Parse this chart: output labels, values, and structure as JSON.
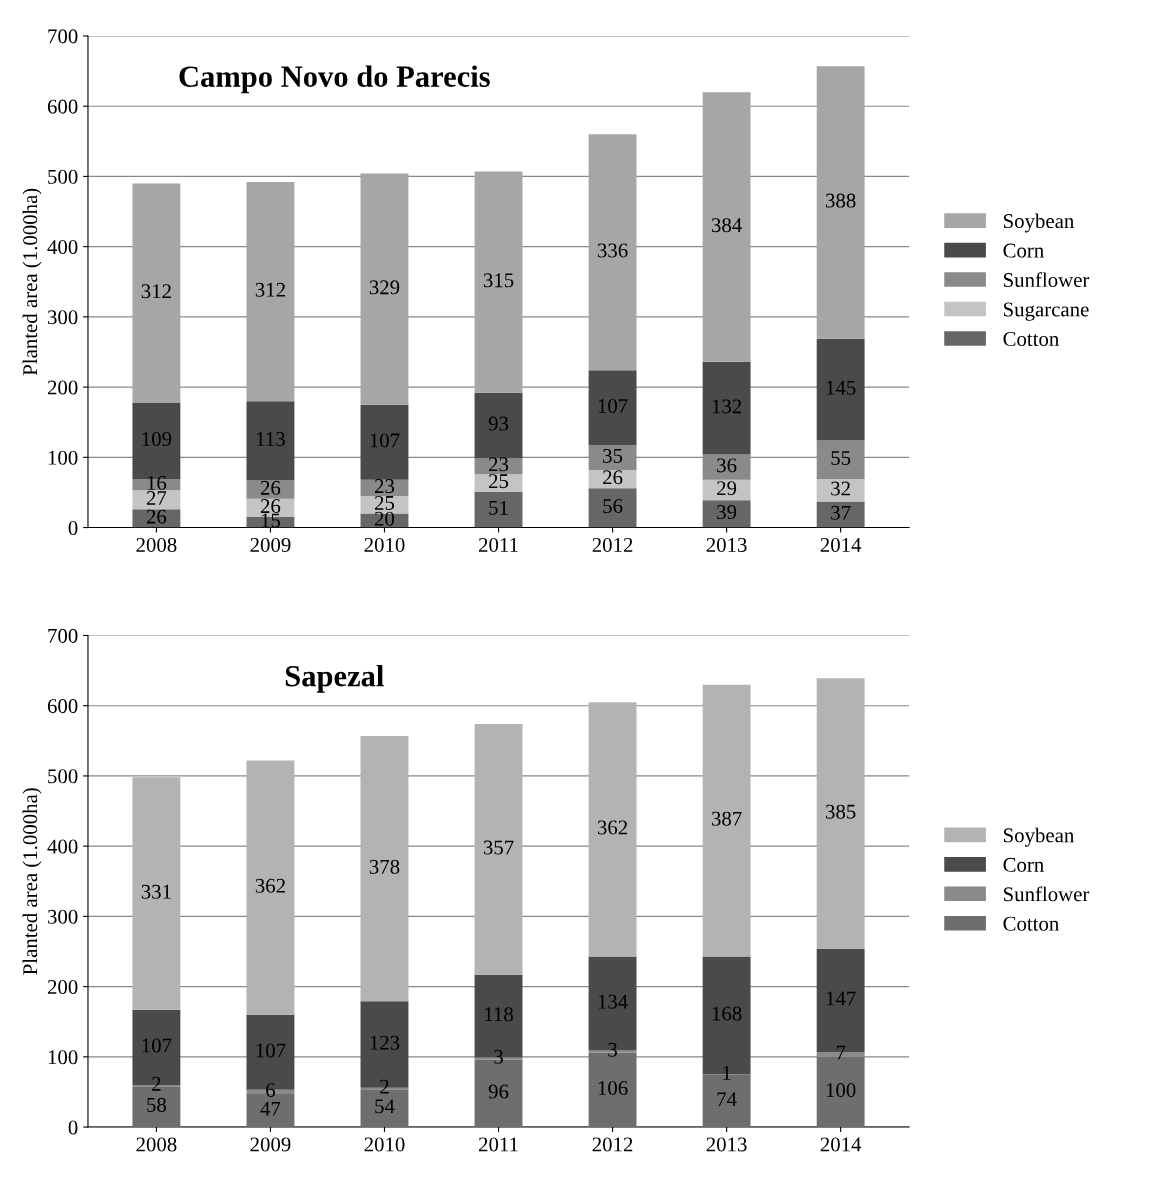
{
  "chart_data": [
    {
      "type": "bar",
      "title": "Campo Novo do Parecis",
      "ylabel": "Planted area (1.000ha)",
      "categories": [
        "2008",
        "2009",
        "2010",
        "2011",
        "2012",
        "2013",
        "2014"
      ],
      "stacked": true,
      "data_labels": true,
      "ylim": [
        0,
        700
      ],
      "yticks": [
        0,
        100,
        200,
        300,
        400,
        500,
        600,
        700
      ],
      "grid": "y",
      "legend": "right",
      "series": [
        {
          "name": "Cotton",
          "color": "#666666",
          "values": [
            26,
            15,
            20,
            51,
            56,
            39,
            37
          ]
        },
        {
          "name": "Sugarcane",
          "color": "#c4c4c4",
          "values": [
            27,
            26,
            25,
            25,
            26,
            29,
            32
          ]
        },
        {
          "name": "Sunflower",
          "color": "#8a8a8a",
          "values": [
            16,
            26,
            23,
            23,
            35,
            36,
            55
          ]
        },
        {
          "name": "Corn",
          "color": "#4a4a4a",
          "values": [
            109,
            113,
            107,
            93,
            107,
            132,
            145
          ]
        },
        {
          "name": "Soybean",
          "color": "#a6a6a6",
          "values": [
            312,
            312,
            329,
            315,
            336,
            384,
            388
          ]
        }
      ]
    },
    {
      "type": "bar",
      "title": "Sapezal",
      "ylabel": "Planted area (1.000ha)",
      "categories": [
        "2008",
        "2009",
        "2010",
        "2011",
        "2012",
        "2013",
        "2014"
      ],
      "stacked": true,
      "data_labels": true,
      "ylim": [
        0,
        700
      ],
      "yticks": [
        0,
        100,
        200,
        300,
        400,
        500,
        600,
        700
      ],
      "grid": "y",
      "legend": "right",
      "series": [
        {
          "name": "Cotton",
          "color": "#6e6e6e",
          "values": [
            58,
            47,
            54,
            96,
            106,
            74,
            100
          ]
        },
        {
          "name": "Sunflower",
          "color": "#8a8a8a",
          "values": [
            2,
            6,
            2,
            3,
            3,
            1,
            7
          ]
        },
        {
          "name": "Corn",
          "color": "#4a4a4a",
          "values": [
            107,
            107,
            123,
            118,
            134,
            168,
            147
          ]
        },
        {
          "name": "Soybean",
          "color": "#b3b3b3",
          "values": [
            331,
            362,
            378,
            357,
            362,
            387,
            385
          ]
        }
      ]
    }
  ]
}
